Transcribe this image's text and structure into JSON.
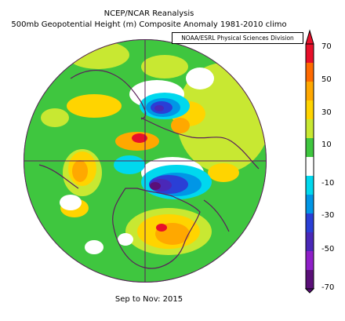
{
  "title_line1": "NCEP/NCAR Reanalysis",
  "title_line2": "500mb Geopotential Height (m) Composite Anomaly 1981-2010 climo",
  "credit": "NOAA/ESRL Physical Sciences Division",
  "period": "Sep to Nov: 2015",
  "colorbar": {
    "ticks": [
      "70",
      "50",
      "30",
      "10",
      "-10",
      "-30",
      "-50",
      "-70"
    ],
    "colors": [
      "#e8102a",
      "#ff6a00",
      "#ffa800",
      "#ffd400",
      "#c8e832",
      "#3fc63f",
      "#ffffff",
      "#00d8ee",
      "#0096e6",
      "#2a3fd6",
      "#4a28b8",
      "#8f1fc8",
      "#5a0f78"
    ]
  },
  "map": {
    "background_color": "#3fc63f",
    "border_color": "#5a1f5a",
    "grid_color": "#5a1f5a"
  }
}
